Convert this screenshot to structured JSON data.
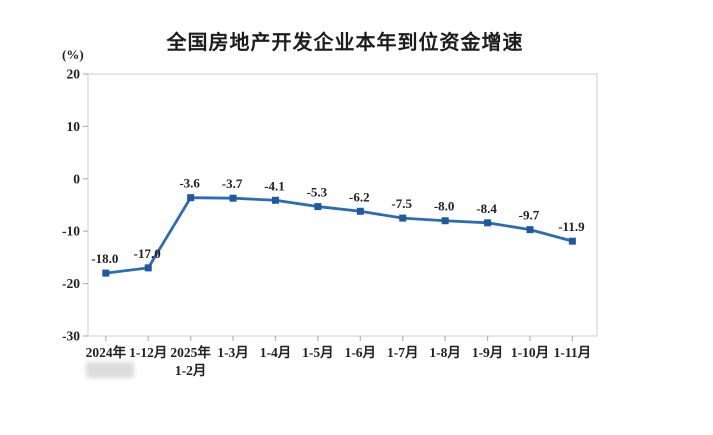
{
  "chart_data": {
    "type": "line",
    "title": "全国房地产开发企业本年到位资金增速",
    "ylabel": "(%)",
    "xlabel": "",
    "categories": [
      "2024年",
      "1-12月",
      "2025年\n1-2月",
      "1-3月",
      "1-4月",
      "1-5月",
      "1-6月",
      "1-7月",
      "1-8月",
      "1-9月",
      "1-10月",
      "1-11月"
    ],
    "values": [
      -18.0,
      -17.0,
      -3.6,
      -3.7,
      -4.1,
      -5.3,
      -6.2,
      -7.5,
      -8.0,
      -8.4,
      -9.7,
      -11.9
    ],
    "data_labels": [
      "-18.0",
      "-17.0",
      "-3.6",
      "-3.7",
      "-4.1",
      "-5.3",
      "-6.2",
      "-7.5",
      "-8.0",
      "-8.4",
      "-9.7",
      "-11.9"
    ],
    "ylim": [
      -30,
      20
    ],
    "yticks": [
      20,
      10,
      0,
      -10,
      -20,
      -30
    ],
    "grid": false,
    "legend": "none",
    "colors": {
      "line": "#2b6cb5",
      "marker": "#1f5aa0",
      "plot_border": "#d9d9d9",
      "tick": "#b3b3b3",
      "text": "#212121"
    }
  }
}
